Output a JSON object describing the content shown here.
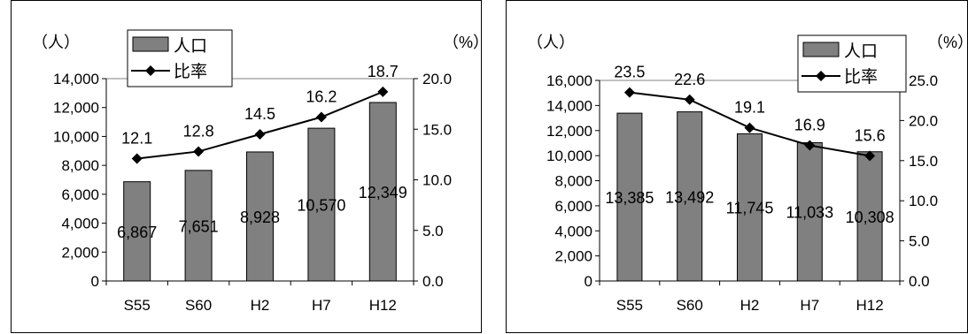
{
  "chart_data": [
    {
      "type": "bar",
      "categories": [
        "S55",
        "S60",
        "H2",
        "H7",
        "H12"
      ],
      "series": [
        {
          "name": "人口",
          "type": "bar",
          "axis": "left",
          "values": [
            6867,
            7651,
            8928,
            10570,
            12349
          ],
          "labels": [
            "6,867",
            "7,651",
            "8,928",
            "10,570",
            "12,349"
          ]
        },
        {
          "name": "比率",
          "type": "line",
          "axis": "right",
          "values": [
            12.1,
            12.8,
            14.5,
            16.2,
            18.7
          ],
          "labels": [
            "12.1",
            "12.8",
            "14.5",
            "16.2",
            "18.7"
          ]
        }
      ],
      "y_left": {
        "unit": "（人）",
        "min": 0,
        "max": 14000,
        "step": 2000,
        "ticks": [
          "0",
          "2,000",
          "4,000",
          "6,000",
          "8,000",
          "10,000",
          "12,000",
          "14,000"
        ]
      },
      "y_right": {
        "unit": "（%）",
        "min": 0,
        "max": 20,
        "step": 5,
        "ticks": [
          "0.0",
          "5.0",
          "10.0",
          "15.0",
          "20.0"
        ]
      },
      "legend": {
        "position": "top-left",
        "items": [
          "人口",
          "比率"
        ]
      },
      "grid": false,
      "colors": {
        "bar": "#808080",
        "line": "#000000"
      }
    },
    {
      "type": "bar",
      "categories": [
        "S55",
        "S60",
        "H2",
        "H7",
        "H12"
      ],
      "series": [
        {
          "name": "人口",
          "type": "bar",
          "axis": "left",
          "values": [
            13385,
            13492,
            11745,
            11033,
            10308
          ],
          "labels": [
            "13,385",
            "13,492",
            "11,745",
            "11,033",
            "10,308"
          ]
        },
        {
          "name": "比率",
          "type": "line",
          "axis": "right",
          "values": [
            23.5,
            22.6,
            19.1,
            16.9,
            15.6
          ],
          "labels": [
            "23.5",
            "22.6",
            "19.1",
            "16.9",
            "15.6"
          ]
        }
      ],
      "y_left": {
        "unit": "（人）",
        "min": 0,
        "max": 16000,
        "step": 2000,
        "ticks": [
          "0",
          "2,000",
          "4,000",
          "6,000",
          "8,000",
          "10,000",
          "12,000",
          "14,000",
          "16,000"
        ]
      },
      "y_right": {
        "unit": "（%）",
        "min": 0,
        "max": 25,
        "step": 5,
        "ticks": [
          "0.0",
          "5.0",
          "10.0",
          "15.0",
          "20.0",
          "25.0"
        ]
      },
      "legend": {
        "position": "top-right",
        "items": [
          "人口",
          "比率"
        ]
      },
      "grid": false,
      "colors": {
        "bar": "#808080",
        "line": "#000000"
      }
    }
  ]
}
